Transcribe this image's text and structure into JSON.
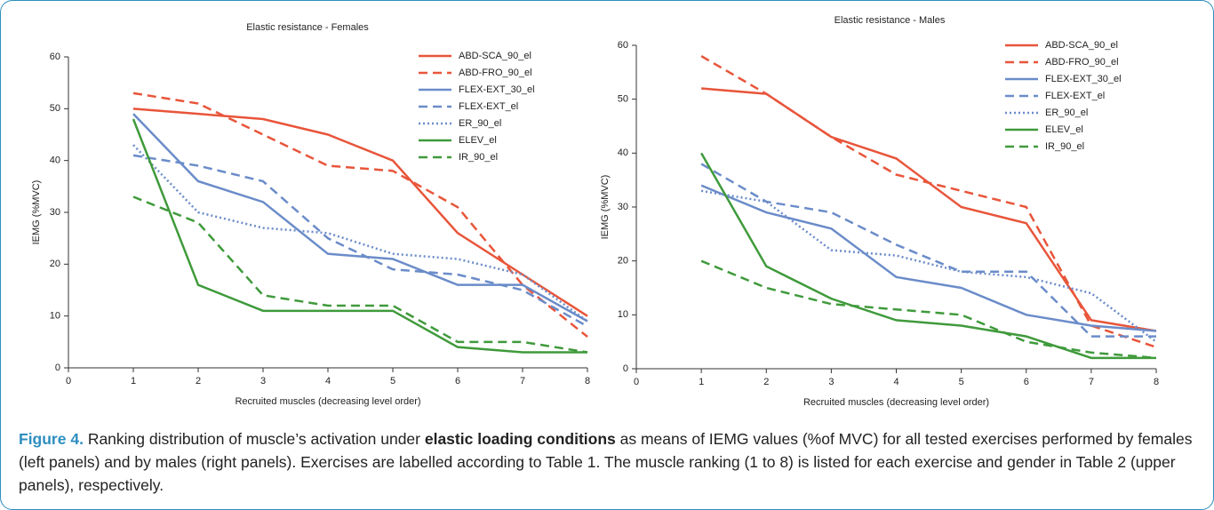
{
  "chart_data": [
    {
      "type": "line",
      "title": "Elastic resistance - Females",
      "xlabel": "Recruited muscles (decreasing level order)",
      "ylabel": "IEMG (%MVC)",
      "x": [
        1,
        2,
        3,
        4,
        5,
        6,
        7,
        8
      ],
      "xlim": [
        0,
        8
      ],
      "xticks": [
        0,
        1,
        2,
        3,
        4,
        5,
        6,
        7,
        8
      ],
      "ylim": [
        0,
        60
      ],
      "yticks": [
        0,
        10,
        20,
        30,
        40,
        50,
        60
      ],
      "series": [
        {
          "name": "ABD-SCA_90_el",
          "color": "#e8553a",
          "dash": "solid",
          "values": [
            50,
            49,
            48,
            45,
            40,
            26,
            18,
            10
          ]
        },
        {
          "name": "ABD-FRO_90_el",
          "color": "#e8553a",
          "dash": "dashed",
          "values": [
            53,
            51,
            45,
            39,
            38,
            31,
            16,
            6
          ]
        },
        {
          "name": "FLEX-EXT_30_el",
          "color": "#6b8cc9",
          "dash": "solid",
          "values": [
            49,
            36,
            32,
            22,
            21,
            16,
            16,
            9
          ]
        },
        {
          "name": "FLEX-EXT_el",
          "color": "#6b8cc9",
          "dash": "dashed",
          "values": [
            41,
            39,
            36,
            25,
            19,
            18,
            15,
            8
          ]
        },
        {
          "name": "ER_90_el",
          "color": "#6b8cc9",
          "dash": "dotted",
          "values": [
            43,
            30,
            27,
            26,
            22,
            21,
            18,
            9
          ]
        },
        {
          "name": "ELEV_el",
          "color": "#3f9a3b",
          "dash": "solid",
          "values": [
            48,
            16,
            11,
            11,
            11,
            4,
            3,
            3
          ]
        },
        {
          "name": "IR_90_el",
          "color": "#3f9a3b",
          "dash": "dashed",
          "values": [
            33,
            28,
            14,
            12,
            12,
            5,
            5,
            3
          ]
        }
      ]
    },
    {
      "type": "line",
      "title": "Elastic resistance - Males",
      "xlabel": "Recruited muscles (decreasing level order)",
      "ylabel": "IEMG (%MVC)",
      "x": [
        1,
        2,
        3,
        4,
        5,
        6,
        7,
        8
      ],
      "xlim": [
        0,
        8
      ],
      "xticks": [
        0,
        1,
        2,
        3,
        4,
        5,
        6,
        7,
        8
      ],
      "ylim": [
        0,
        60
      ],
      "yticks": [
        0,
        10,
        20,
        30,
        40,
        50,
        60
      ],
      "series": [
        {
          "name": "ABD-SCA_90_el",
          "color": "#e8553a",
          "dash": "solid",
          "values": [
            52,
            51,
            43,
            39,
            30,
            27,
            9,
            7
          ]
        },
        {
          "name": "ABD-FRO_90_el",
          "color": "#e8553a",
          "dash": "dashed",
          "values": [
            58,
            51,
            43,
            36,
            33,
            30,
            8,
            4
          ]
        },
        {
          "name": "FLEX-EXT_30_el",
          "color": "#6b8cc9",
          "dash": "solid",
          "values": [
            34,
            29,
            26,
            17,
            15,
            10,
            8,
            7
          ]
        },
        {
          "name": "FLEX-EXT_el",
          "color": "#6b8cc9",
          "dash": "dashed",
          "values": [
            38,
            31,
            29,
            23,
            18,
            18,
            6,
            6
          ]
        },
        {
          "name": "ER_90_el",
          "color": "#6b8cc9",
          "dash": "dotted",
          "values": [
            33,
            31,
            22,
            21,
            18,
            17,
            14,
            5
          ]
        },
        {
          "name": "ELEV_el",
          "color": "#3f9a3b",
          "dash": "solid",
          "values": [
            40,
            19,
            13,
            9,
            8,
            6,
            2,
            2
          ]
        },
        {
          "name": "IR_90_el",
          "color": "#3f9a3b",
          "dash": "dashed",
          "values": [
            20,
            15,
            12,
            11,
            10,
            5,
            3,
            2
          ]
        }
      ]
    }
  ],
  "caption": {
    "label": "Figure 4.",
    "parts": [
      "Ranking distribution of muscle’s activation under ",
      "elastic loading conditions",
      " as means of IEMG values (%of MVC) for all tested exercises performed by females (left panels) and by males (right panels). Exercises are labelled according to Table 1. The muscle ranking (1 to 8) is listed for each exercise and gender in Table 2 (upper panels), respectively."
    ]
  }
}
